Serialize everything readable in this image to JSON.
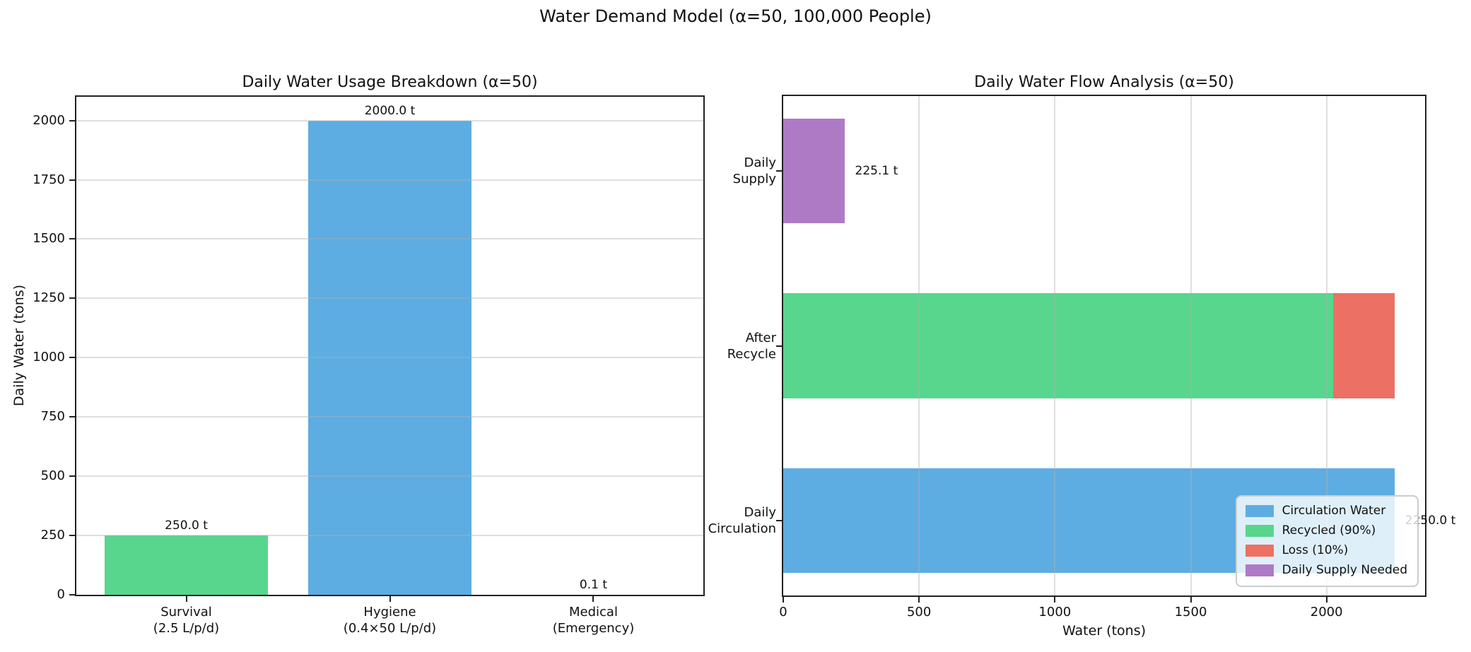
{
  "figure": {
    "title": "Water Demand Model (α=50, 100,000 People)",
    "background": "#ffffff"
  },
  "colors": {
    "blue": "#5dade2",
    "green": "#58d68d",
    "red": "#ec7063",
    "purple": "#af7ac5",
    "spine": "#222222",
    "grid": "#b0b0b0"
  },
  "chart_data": [
    {
      "type": "bar",
      "title": "Daily Water Usage Breakdown (α=50)",
      "ylabel": "Daily Water (tons)",
      "xlabel": "",
      "categories": [
        "Survival\n(2.5 L/p/d)",
        "Hygiene\n(0.4×50 L/p/d)",
        "Medical\n(Emergency)"
      ],
      "values": [
        250.0,
        2000.0,
        0.1
      ],
      "bar_colors": [
        "#58d68d",
        "#5dade2",
        "#ec7063"
      ],
      "value_labels": [
        "250.0 t",
        "2000.0 t",
        "0.1 t"
      ],
      "ylim": [
        0,
        2100
      ],
      "yticks": [
        0,
        250,
        500,
        750,
        1000,
        1250,
        1500,
        1750,
        2000
      ],
      "grid": true,
      "legend_position": "none"
    },
    {
      "type": "stacked-barh",
      "title": "Daily Water Flow Analysis (α=50)",
      "xlabel": "Water (tons)",
      "ylabel": "",
      "xlim": [
        0,
        2362.5
      ],
      "xticks": [
        0,
        500,
        1000,
        1500,
        2000
      ],
      "rows": [
        {
          "category": "Daily\nSupply",
          "segments": [
            {
              "name": "Daily Supply Needed",
              "value": 225.1,
              "color": "#af7ac5"
            }
          ],
          "annotation": "225.1 t"
        },
        {
          "category": "After\nRecycle",
          "segments": [
            {
              "name": "Recycled (90%)",
              "value": 2025.0,
              "color": "#58d68d"
            },
            {
              "name": "Loss (10%)",
              "value": 225.0,
              "color": "#ec7063"
            }
          ],
          "annotation": ""
        },
        {
          "category": "Daily\nCirculation",
          "segments": [
            {
              "name": "Circulation Water",
              "value": 2250.0,
              "color": "#5dade2"
            }
          ],
          "annotation": "2250.0 t"
        }
      ],
      "legend": {
        "position": "lower right",
        "entries": [
          {
            "label": "Circulation Water",
            "color": "#5dade2"
          },
          {
            "label": "Recycled (90%)",
            "color": "#58d68d"
          },
          {
            "label": "Loss (10%)",
            "color": "#ec7063"
          },
          {
            "label": "Daily Supply Needed",
            "color": "#af7ac5"
          }
        ]
      },
      "grid": true
    }
  ]
}
